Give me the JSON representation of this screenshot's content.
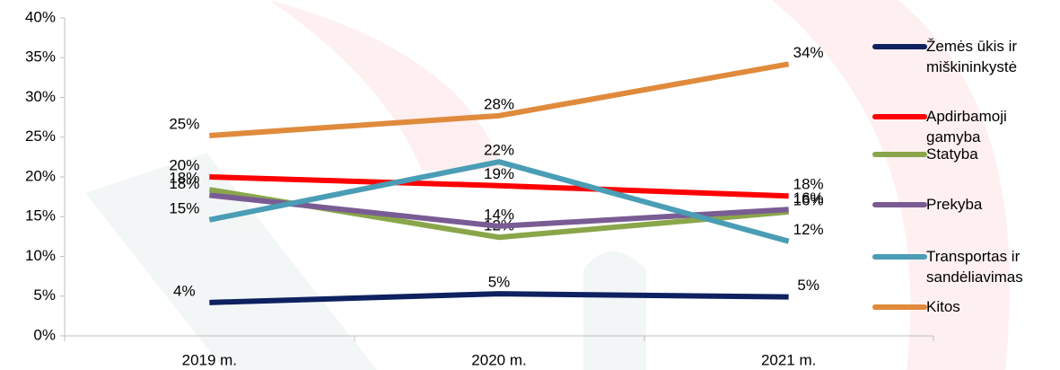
{
  "chart_data": {
    "type": "line",
    "categories": [
      "2019 m.",
      "2020 m.",
      "2021 m."
    ],
    "ylim": [
      0,
      40
    ],
    "yticks": [
      {
        "value": 0,
        "label": "0%"
      },
      {
        "value": 5,
        "label": "5%"
      },
      {
        "value": 10,
        "label": "10%"
      },
      {
        "value": 15,
        "label": "15%"
      },
      {
        "value": 20,
        "label": "20%"
      },
      {
        "value": 25,
        "label": "25%"
      },
      {
        "value": 30,
        "label": "30%"
      },
      {
        "value": 35,
        "label": "35%"
      },
      {
        "value": 40,
        "label": "40%"
      }
    ],
    "series": [
      {
        "name": "Žemės ūkis ir miškininkystė",
        "color": "#0e2160",
        "values": [
          4.2,
          5.3,
          4.9
        ],
        "value_labels": [
          "4%",
          "5%",
          "5%"
        ]
      },
      {
        "name": "Apdirbamoji gamyba",
        "color": "#ff0000",
        "values": [
          20.0,
          18.9,
          17.6
        ],
        "value_labels": [
          "20%",
          "19%",
          "18%"
        ]
      },
      {
        "name": "Statyba",
        "color": "#8aa64a",
        "values": [
          18.4,
          12.4,
          15.6
        ],
        "value_labels": [
          "18%",
          "12%",
          "16%"
        ]
      },
      {
        "name": "Prekyba",
        "color": "#7a5c94",
        "values": [
          17.7,
          13.8,
          15.9
        ],
        "value_labels": [
          "18%",
          "14%",
          "16%"
        ]
      },
      {
        "name": "Transportas ir sandėliavimas",
        "color": "#4a9db5",
        "values": [
          14.6,
          21.9,
          11.9
        ],
        "value_labels": [
          "15%",
          "22%",
          "12%"
        ]
      },
      {
        "name": "Kitos",
        "color": "#e08a3c",
        "values": [
          25.2,
          27.7,
          34.2
        ],
        "value_labels": [
          "25%",
          "28%",
          "34%"
        ]
      }
    ]
  }
}
